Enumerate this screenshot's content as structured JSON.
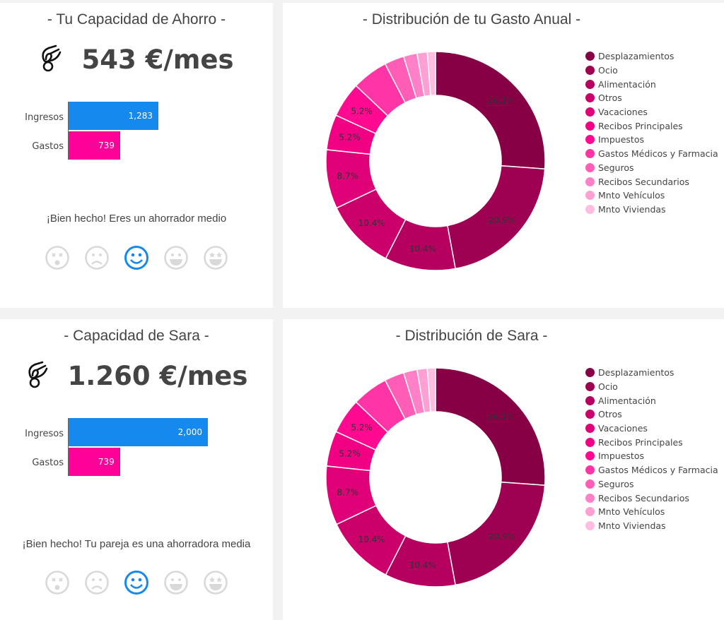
{
  "panels": [
    {
      "title": "- Tu Capacidad de Ahorro -",
      "amount": "543 €/mes",
      "ingresos_label": "Ingresos",
      "gastos_label": "Gastos",
      "ingresos": 1283,
      "ingresos_text": "1,283",
      "gastos": 739,
      "gastos_text": "739",
      "message": "¡Bien hecho! Eres un ahorrador medio",
      "selected_face": 2
    },
    {
      "title": "- Capacidad de Sara -",
      "amount": "1.260 €/mes",
      "ingresos_label": "Ingresos",
      "gastos_label": "Gastos",
      "ingresos": 2000,
      "ingresos_text": "2,000",
      "gastos": 739,
      "gastos_text": "739",
      "message": "¡Bien hecho! Tu pareja es una ahorradora media",
      "selected_face": 2
    }
  ],
  "colors": {
    "ingresos": "#1589ee",
    "gastos": "#ff0099",
    "face_selected": "#1589ee",
    "face_other": "#d9d9d9"
  },
  "faces": [
    "dizzy-face-icon",
    "sad-face-icon",
    "smile-face-icon",
    "grin-face-icon",
    "star-eyes-face-icon"
  ],
  "chart_data": [
    {
      "type": "pie",
      "title": "- Distribución de tu Gasto Anual -",
      "hole": 0.6,
      "legend_position": "right",
      "labels": [
        "Desplazamientos",
        "Ocio",
        "Alimentación",
        "Otros",
        "Vacaciones",
        "Recibos Principales",
        "Impuestos",
        "Gastos Médicos y Farmacia",
        "Seguros",
        "Recibos Secundarios",
        "Mnto Vehículos",
        "Mnto Viviendas"
      ],
      "values": [
        26.1,
        20.9,
        10.4,
        10.4,
        8.7,
        5.2,
        5.2,
        5.3,
        2.9,
        2.0,
        1.5,
        1.2
      ],
      "value_labels": [
        "26.1%",
        "20.9%",
        "10.4%",
        "10.4%",
        "8.7%",
        "5.2%",
        "5.2%",
        "",
        "",
        "",
        "",
        ""
      ],
      "colors": [
        "#870045",
        "#9e0052",
        "#b5005f",
        "#cc006b",
        "#e00078",
        "#f20084",
        "#ff0a90",
        "#ff35a6",
        "#ff5db6",
        "#ff80c6",
        "#ffa0d4",
        "#ffbde2"
      ]
    },
    {
      "type": "pie",
      "title": "- Distribución de Sara -",
      "hole": 0.6,
      "legend_position": "right",
      "labels": [
        "Desplazamientos",
        "Ocio",
        "Alimentación",
        "Otros",
        "Vacaciones",
        "Recibos Principales",
        "Impuestos",
        "Gastos Médicos y Farmacia",
        "Seguros",
        "Recibos Secundarios",
        "Mnto Vehículos",
        "Mnto Viviendas"
      ],
      "values": [
        26.1,
        20.9,
        10.4,
        10.4,
        8.7,
        5.2,
        5.2,
        5.3,
        2.9,
        2.0,
        1.5,
        1.2
      ],
      "value_labels": [
        "26.1%",
        "20.9%",
        "10.4%",
        "10.4%",
        "8.7%",
        "5.2%",
        "5.2%",
        "",
        "",
        "",
        "",
        ""
      ],
      "colors": [
        "#870045",
        "#9e0052",
        "#b5005f",
        "#cc006b",
        "#e00078",
        "#f20084",
        "#ff0a90",
        "#ff35a6",
        "#ff5db6",
        "#ff80c6",
        "#ffa0d4",
        "#ffbde2"
      ]
    }
  ]
}
